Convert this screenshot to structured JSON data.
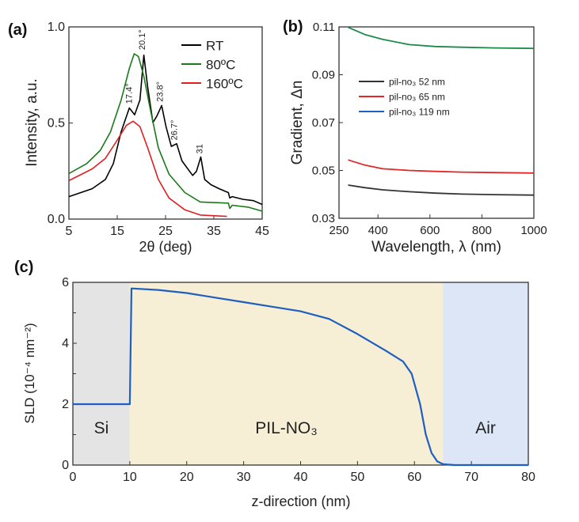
{
  "chart_data": [
    {
      "panel_label": "(a)",
      "type": "line",
      "xlabel": "2θ (deg)",
      "ylabel": "Intensity, a.u.",
      "xlim": [
        5,
        45
      ],
      "ylim": [
        0,
        1.0
      ],
      "xticks": [
        5,
        15,
        25,
        35,
        45
      ],
      "yticks": [
        "0.0",
        "0.5",
        "1.0"
      ],
      "legend": "top-right",
      "series": [
        {
          "name": "RT",
          "color": "#000000",
          "x": [
            5,
            9.8,
            12.55,
            14.2,
            15.8,
            17.5,
            18.6,
            19.7,
            20.5,
            21.3,
            22.4,
            23.2,
            24.2,
            25.1,
            26.2,
            27.3,
            28.4,
            30.6,
            31.4,
            32.3,
            33.1,
            34.4,
            36.1,
            38,
            38.3,
            38.8,
            41,
            43.2,
            45
          ],
          "y": [
            0.117,
            0.158,
            0.206,
            0.289,
            0.454,
            0.578,
            0.543,
            0.62,
            0.853,
            0.688,
            0.502,
            0.536,
            0.591,
            0.481,
            0.378,
            0.392,
            0.303,
            0.227,
            0.248,
            0.323,
            0.206,
            0.179,
            0.158,
            0.138,
            0.11,
            0.117,
            0.103,
            0.096,
            0.076
          ]
        },
        {
          "name": "80ºC",
          "color": "#1a7a1a",
          "x": [
            5,
            8.7,
            11.5,
            13.6,
            15.8,
            17.5,
            18.5,
            19.4,
            20.5,
            21.9,
            23.5,
            25.7,
            29,
            32.2,
            38,
            38.3,
            38.8,
            42.1,
            45
          ],
          "y": [
            0.237,
            0.289,
            0.358,
            0.454,
            0.619,
            0.784,
            0.86,
            0.846,
            0.743,
            0.564,
            0.371,
            0.234,
            0.138,
            0.089,
            0.083,
            0.055,
            0.072,
            0.062,
            0.041
          ]
        },
        {
          "name": "160ºC",
          "color": "#e02020",
          "x": [
            5,
            9.8,
            12.55,
            14.7,
            16.9,
            18.3,
            19.7,
            21.3,
            23.5,
            25.7,
            29,
            32.2,
            37.7
          ],
          "y": [
            0.2,
            0.261,
            0.316,
            0.399,
            0.488,
            0.509,
            0.481,
            0.371,
            0.206,
            0.11,
            0.048,
            0.021,
            0.014
          ]
        }
      ],
      "annotations": [
        {
          "text": "17.4°",
          "x": 17.4,
          "y": 0.6
        },
        {
          "text": "20.1°",
          "x": 20.1,
          "y": 0.88
        },
        {
          "text": "23.8°",
          "x": 23.8,
          "y": 0.61
        },
        {
          "text": "26.7°",
          "x": 26.7,
          "y": 0.41
        },
        {
          "text": "31",
          "x": 32.0,
          "y": 0.34
        }
      ]
    },
    {
      "panel_label": "(b)",
      "type": "line",
      "xlabel": "Wavelength, λ (nm)",
      "ylabel": "Gradient, Δn",
      "xlim": [
        250,
        1000
      ],
      "ylim": [
        0.03,
        0.11
      ],
      "xticks": [
        250,
        400,
        600,
        800,
        1000
      ],
      "yticks": [
        "0.03",
        "0.05",
        "0.07",
        "0.09",
        "0.11"
      ],
      "legend": "center-left",
      "series": [
        {
          "name": "pil-no₃ 52 nm",
          "color": "#333333",
          "legend_color": "#333333",
          "x": [
            285,
            350,
            418,
            520,
            621,
            723,
            850,
            1000
          ],
          "y": [
            0.0439,
            0.0428,
            0.0419,
            0.0411,
            0.0405,
            0.0401,
            0.0399,
            0.0397
          ]
        },
        {
          "name": "pil-no₃ 65 nm",
          "color": "#e02828",
          "legend_color": "#e02828",
          "x": [
            285,
            350,
            418,
            520,
            621,
            723,
            850,
            1000
          ],
          "y": [
            0.0544,
            0.0522,
            0.0507,
            0.05,
            0.0496,
            0.0493,
            0.0491,
            0.0489
          ]
        },
        {
          "name": "pil-no₃ 119 nm",
          "color": "#1e8a4a",
          "legend_color": "#1f5fbf",
          "x": [
            285,
            350,
            418,
            520,
            621,
            723,
            850,
            1000
          ],
          "y": [
            0.1098,
            0.1068,
            0.1048,
            0.1026,
            0.1018,
            0.1015,
            0.1012,
            0.101
          ]
        }
      ]
    },
    {
      "panel_label": "(c)",
      "type": "line",
      "xlabel": "z-direction (nm)",
      "ylabel": "SLD (10⁻⁴ nm⁻²)",
      "xlim": [
        0,
        80
      ],
      "ylim": [
        0,
        6
      ],
      "xticks": [
        0,
        10,
        20,
        30,
        40,
        50,
        60,
        70,
        80
      ],
      "yticks": [
        "0",
        "2",
        "4",
        "6"
      ],
      "regions": [
        {
          "label": "Si",
          "from": 0,
          "to": 10,
          "color": "#e4e4e4"
        },
        {
          "label": "PIL-NO₃",
          "from": 10,
          "to": 65,
          "color": "#f7eed6"
        },
        {
          "label": "Air",
          "from": 65,
          "to": 80,
          "color": "#dce6f6"
        }
      ],
      "series": [
        {
          "color": "#1f5fbf",
          "x": [
            0,
            10,
            10.3,
            15,
            20,
            25,
            30,
            35,
            40,
            45,
            50,
            55,
            58,
            59.5,
            61,
            62,
            63,
            64,
            65,
            67,
            80
          ],
          "y": [
            2.0,
            2.0,
            5.8,
            5.75,
            5.65,
            5.5,
            5.35,
            5.2,
            5.05,
            4.8,
            4.3,
            3.75,
            3.4,
            3.0,
            2.0,
            1.0,
            0.4,
            0.12,
            0.03,
            0.0,
            0.0
          ]
        }
      ]
    }
  ]
}
